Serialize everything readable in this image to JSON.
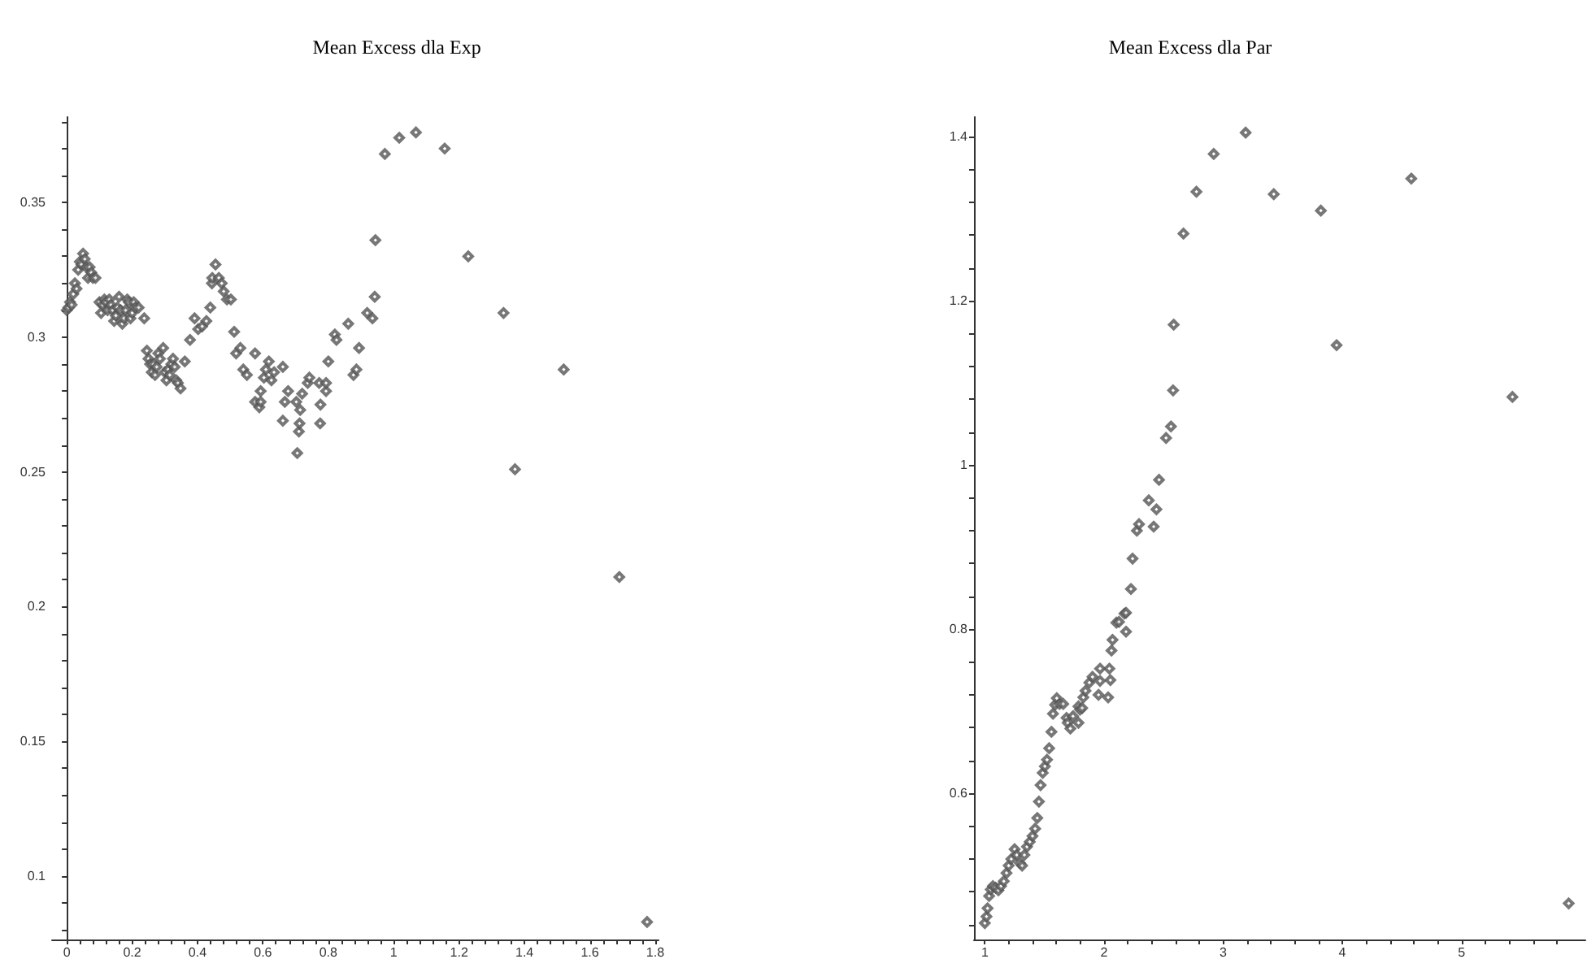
{
  "chart_data": [
    {
      "type": "scatter",
      "title": "Mean Excess dla Exp",
      "color": "#555555",
      "marker": "diamond",
      "x": [
        0.0,
        0.005,
        0.01,
        0.015,
        0.02,
        0.025,
        0.03,
        0.035,
        0.04,
        0.045,
        0.05,
        0.055,
        0.06,
        0.065,
        0.07,
        0.075,
        0.08,
        0.088,
        0.1,
        0.105,
        0.11,
        0.115,
        0.12,
        0.125,
        0.13,
        0.135,
        0.14,
        0.145,
        0.15,
        0.155,
        0.16,
        0.165,
        0.17,
        0.175,
        0.18,
        0.185,
        0.19,
        0.195,
        0.2,
        0.205,
        0.21,
        0.22,
        0.237,
        0.245,
        0.25,
        0.255,
        0.26,
        0.265,
        0.27,
        0.275,
        0.28,
        0.285,
        0.295,
        0.3,
        0.305,
        0.31,
        0.315,
        0.32,
        0.325,
        0.33,
        0.335,
        0.34,
        0.348,
        0.361,
        0.377,
        0.391,
        0.402,
        0.414,
        0.427,
        0.439,
        0.444,
        0.445,
        0.455,
        0.465,
        0.474,
        0.48,
        0.49,
        0.502,
        0.512,
        0.518,
        0.531,
        0.54,
        0.551,
        0.576,
        0.576,
        0.589,
        0.593,
        0.593,
        0.603,
        0.609,
        0.618,
        0.626,
        0.634,
        0.661,
        0.661,
        0.667,
        0.677,
        0.702,
        0.705,
        0.71,
        0.712,
        0.714,
        0.72,
        0.737,
        0.742,
        0.772,
        0.775,
        0.776,
        0.793,
        0.793,
        0.8,
        0.82,
        0.825,
        0.861,
        0.877,
        0.886,
        0.894,
        0.919,
        0.935,
        0.942,
        0.944,
        0.973,
        1.017,
        1.068,
        1.156,
        1.228,
        1.336,
        1.371,
        1.52,
        1.69,
        1.775
      ],
      "values": [
        0.31,
        0.311,
        0.313,
        0.312,
        0.316,
        0.32,
        0.318,
        0.325,
        0.328,
        0.327,
        0.331,
        0.329,
        0.326,
        0.322,
        0.326,
        0.324,
        0.322,
        0.322,
        0.313,
        0.309,
        0.312,
        0.314,
        0.313,
        0.31,
        0.314,
        0.312,
        0.31,
        0.306,
        0.308,
        0.311,
        0.315,
        0.31,
        0.305,
        0.307,
        0.31,
        0.314,
        0.313,
        0.307,
        0.309,
        0.313,
        0.311,
        0.311,
        0.307,
        0.295,
        0.292,
        0.29,
        0.287,
        0.29,
        0.286,
        0.289,
        0.294,
        0.292,
        0.296,
        0.287,
        0.284,
        0.288,
        0.286,
        0.29,
        0.292,
        0.289,
        0.284,
        0.283,
        0.281,
        0.291,
        0.299,
        0.307,
        0.303,
        0.304,
        0.306,
        0.311,
        0.32,
        0.322,
        0.327,
        0.322,
        0.32,
        0.317,
        0.314,
        0.314,
        0.302,
        0.294,
        0.296,
        0.288,
        0.286,
        0.294,
        0.276,
        0.274,
        0.276,
        0.28,
        0.285,
        0.288,
        0.291,
        0.284,
        0.287,
        0.289,
        0.269,
        0.276,
        0.28,
        0.276,
        0.257,
        0.265,
        0.268,
        0.273,
        0.279,
        0.283,
        0.285,
        0.283,
        0.268,
        0.275,
        0.28,
        0.283,
        0.291,
        0.301,
        0.299,
        0.305,
        0.286,
        0.288,
        0.296,
        0.309,
        0.307,
        0.315,
        0.336,
        0.368,
        0.374,
        0.376,
        0.37,
        0.33,
        0.309,
        0.251,
        0.288,
        0.211,
        0.083
      ],
      "xlim": [
        -0.045,
        1.81
      ],
      "ylim": [
        0.0765,
        0.3817
      ],
      "xticks": [
        0,
        {
          "value": 0.04,
          "label": null
        },
        {
          "value": 0.08,
          "label": null
        },
        {
          "value": 0.12,
          "label": null
        },
        {
          "value": 0.16,
          "label": null
        },
        0.2,
        {
          "value": 0.24,
          "label": null
        },
        {
          "value": 0.28,
          "label": null
        },
        {
          "value": 0.32,
          "label": null
        },
        {
          "value": 0.36,
          "label": null
        },
        0.4,
        {
          "value": 0.44,
          "label": null
        },
        {
          "value": 0.48,
          "label": null
        },
        {
          "value": 0.52,
          "label": null
        },
        {
          "value": 0.56,
          "label": null
        },
        0.6,
        {
          "value": 0.64,
          "label": null
        },
        {
          "value": 0.68,
          "label": null
        },
        {
          "value": 0.72,
          "label": null
        },
        {
          "value": 0.76,
          "label": null
        },
        0.8,
        {
          "value": 0.84,
          "label": null
        },
        {
          "value": 0.88,
          "label": null
        },
        {
          "value": 0.92,
          "label": null
        },
        {
          "value": 0.96,
          "label": null
        },
        1,
        {
          "value": 1.04,
          "label": null
        },
        {
          "value": 1.08,
          "label": null
        },
        {
          "value": 1.12,
          "label": null
        },
        {
          "value": 1.16,
          "label": null
        },
        1.2,
        {
          "value": 1.24,
          "label": null
        },
        {
          "value": 1.28,
          "label": null
        },
        {
          "value": 1.32,
          "label": null
        },
        {
          "value": 1.36,
          "label": null
        },
        1.4,
        {
          "value": 1.44,
          "label": null
        },
        {
          "value": 1.48,
          "label": null
        },
        {
          "value": 1.52,
          "label": null
        },
        {
          "value": 1.56,
          "label": null
        },
        1.6,
        {
          "value": 1.64,
          "label": null
        },
        {
          "value": 1.68,
          "label": null
        },
        {
          "value": 1.72,
          "label": null
        },
        {
          "value": 1.76,
          "label": null
        },
        1.8
      ],
      "yticks": [
        {
          "value": 0.08,
          "label": null
        },
        {
          "value": 0.09,
          "label": null
        },
        0.1,
        {
          "value": 0.11,
          "label": null
        },
        {
          "value": 0.12,
          "label": null
        },
        {
          "value": 0.13,
          "label": null
        },
        {
          "value": 0.14,
          "label": null
        },
        0.15,
        {
          "value": 0.16,
          "label": null
        },
        {
          "value": 0.17,
          "label": null
        },
        {
          "value": 0.18,
          "label": null
        },
        {
          "value": 0.19,
          "label": null
        },
        0.2,
        {
          "value": 0.21,
          "label": null
        },
        {
          "value": 0.22,
          "label": null
        },
        {
          "value": 0.23,
          "label": null
        },
        {
          "value": 0.24,
          "label": null
        },
        0.25,
        {
          "value": 0.26,
          "label": null
        },
        {
          "value": 0.27,
          "label": null
        },
        {
          "value": 0.28,
          "label": null
        },
        {
          "value": 0.29,
          "label": null
        },
        0.3,
        {
          "value": 0.31,
          "label": null
        },
        {
          "value": 0.32,
          "label": null
        },
        {
          "value": 0.33,
          "label": null
        },
        {
          "value": 0.34,
          "label": null
        },
        0.35,
        {
          "value": 0.36,
          "label": null
        },
        {
          "value": 0.37,
          "label": null
        },
        {
          "value": 0.38,
          "label": null
        }
      ]
    },
    {
      "type": "scatter",
      "title": "Mean Excess dla Par",
      "color": "#555555",
      "marker": "diamond",
      "x": [
        1.0,
        1.014,
        1.023,
        1.036,
        1.05,
        1.068,
        1.091,
        1.114,
        1.136,
        1.159,
        1.182,
        1.2,
        1.222,
        1.25,
        1.268,
        1.295,
        1.313,
        1.332,
        1.354,
        1.377,
        1.4,
        1.422,
        1.44,
        1.454,
        1.468,
        1.486,
        1.504,
        1.522,
        1.54,
        1.559,
        1.572,
        1.59,
        1.604,
        1.627,
        1.658,
        1.686,
        1.695,
        1.718,
        1.74,
        1.786,
        1.786,
        1.799,
        1.817,
        1.827,
        1.845,
        1.877,
        1.904,
        1.954,
        1.967,
        1.967,
        2.035,
        2.045,
        2.054,
        2.063,
        2.072,
        2.104,
        2.126,
        2.172,
        2.185,
        2.185,
        2.226,
        2.24,
        2.276,
        2.294,
        2.376,
        2.417,
        2.44,
        2.462,
        2.521,
        2.562,
        2.58,
        2.585,
        2.667,
        2.776,
        2.921,
        3.189,
        3.425,
        3.82,
        3.952,
        4.579,
        5.428,
        5.9
      ],
      "values": [
        0.442,
        0.45,
        0.46,
        0.475,
        0.483,
        0.487,
        0.485,
        0.482,
        0.487,
        0.493,
        0.503,
        0.512,
        0.52,
        0.532,
        0.525,
        0.515,
        0.512,
        0.525,
        0.535,
        0.541,
        0.548,
        0.557,
        0.57,
        0.59,
        0.61,
        0.625,
        0.633,
        0.641,
        0.655,
        0.675,
        0.697,
        0.708,
        0.716,
        0.709,
        0.709,
        0.692,
        0.686,
        0.679,
        0.694,
        0.706,
        0.686,
        0.702,
        0.704,
        0.717,
        0.725,
        0.735,
        0.742,
        0.72,
        0.752,
        0.737,
        0.717,
        0.752,
        0.738,
        0.774,
        0.787,
        0.808,
        0.809,
        0.819,
        0.82,
        0.797,
        0.849,
        0.886,
        0.92,
        0.928,
        0.957,
        0.925,
        0.946,
        0.982,
        1.033,
        1.047,
        1.091,
        1.171,
        1.282,
        1.333,
        1.379,
        1.405,
        1.33,
        1.31,
        1.146,
        1.349,
        1.083,
        0.466
      ],
      "xlim": [
        0.909,
        6.04
      ],
      "ylim": [
        0.422,
        1.424
      ],
      "xticks": [
        1,
        {
          "value": 1.2,
          "label": null
        },
        {
          "value": 1.4,
          "label": null
        },
        {
          "value": 1.6,
          "label": null
        },
        {
          "value": 1.8,
          "label": null
        },
        2,
        {
          "value": 2.2,
          "label": null
        },
        {
          "value": 2.4,
          "label": null
        },
        {
          "value": 2.6,
          "label": null
        },
        {
          "value": 2.8,
          "label": null
        },
        3,
        {
          "value": 3.2,
          "label": null
        },
        {
          "value": 3.4,
          "label": null
        },
        {
          "value": 3.6,
          "label": null
        },
        {
          "value": 3.8,
          "label": null
        },
        4,
        {
          "value": 4.2,
          "label": null
        },
        {
          "value": 4.4,
          "label": null
        },
        {
          "value": 4.6,
          "label": null
        },
        {
          "value": 4.8,
          "label": null
        },
        5,
        {
          "value": 5.2,
          "label": null
        },
        {
          "value": 5.4,
          "label": null
        },
        {
          "value": 5.6,
          "label": null
        },
        {
          "value": 5.8,
          "label": null
        }
      ],
      "yticks": [
        {
          "value": 0.44,
          "label": null
        },
        {
          "value": 0.48,
          "label": null
        },
        {
          "value": 0.52,
          "label": null
        },
        {
          "value": 0.56,
          "label": null
        },
        0.6,
        {
          "value": 0.64,
          "label": null
        },
        {
          "value": 0.68,
          "label": null
        },
        {
          "value": 0.72,
          "label": null
        },
        {
          "value": 0.76,
          "label": null
        },
        0.8,
        {
          "value": 0.84,
          "label": null
        },
        {
          "value": 0.88,
          "label": null
        },
        {
          "value": 0.92,
          "label": null
        },
        {
          "value": 0.96,
          "label": null
        },
        1,
        {
          "value": 1.04,
          "label": null
        },
        {
          "value": 1.08,
          "label": null
        },
        {
          "value": 1.12,
          "label": null
        },
        {
          "value": 1.16,
          "label": null
        },
        1.2,
        {
          "value": 1.24,
          "label": null
        },
        {
          "value": 1.28,
          "label": null
        },
        {
          "value": 1.32,
          "label": null
        },
        {
          "value": 1.36,
          "label": null
        },
        1.4
      ]
    }
  ]
}
